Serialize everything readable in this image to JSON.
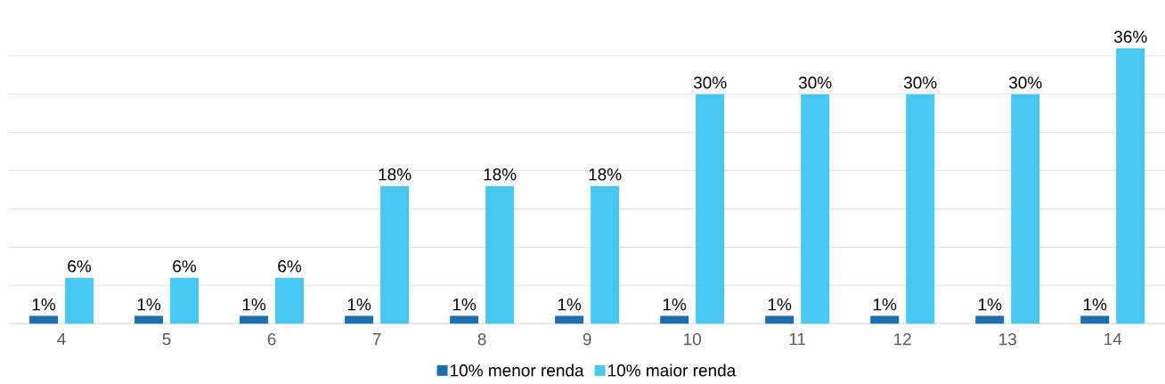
{
  "chart_data": {
    "type": "bar",
    "categories": [
      "4",
      "5",
      "6",
      "7",
      "8",
      "9",
      "10",
      "11",
      "12",
      "13",
      "14"
    ],
    "series": [
      {
        "name": "10% menor renda",
        "color": "#1f6eb0",
        "values": [
          1,
          1,
          1,
          1,
          1,
          1,
          1,
          1,
          1,
          1,
          1
        ],
        "value_labels": [
          "1%",
          "1%",
          "1%",
          "1%",
          "1%",
          "1%",
          "1%",
          "1%",
          "1%",
          "1%",
          "1%"
        ]
      },
      {
        "name": "10% maior renda",
        "color": "#48c8f0",
        "values": [
          6,
          6,
          6,
          18,
          18,
          18,
          30,
          30,
          30,
          30,
          36
        ],
        "value_labels": [
          "6%",
          "6%",
          "6%",
          "18%",
          "18%",
          "18%",
          "30%",
          "30%",
          "30%",
          "30%",
          "36%"
        ]
      }
    ],
    "tick_labels": "x",
    "grid": "y",
    "legend": "bottom"
  }
}
